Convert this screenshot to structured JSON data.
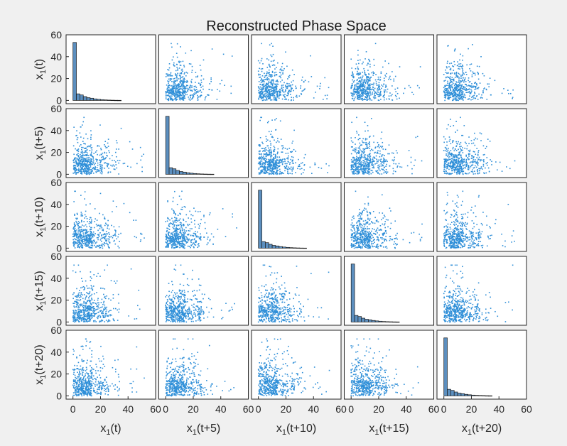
{
  "chart_data": {
    "type": "scatter-matrix",
    "title": "Reconstructed Phase Space",
    "variables": [
      {
        "base": "x",
        "sub": "1",
        "suffix": "(t)"
      },
      {
        "base": "x",
        "sub": "1",
        "suffix": "(t+5)"
      },
      {
        "base": "x",
        "sub": "1",
        "suffix": "(t+10)"
      },
      {
        "base": "x",
        "sub": "1",
        "suffix": "(t+15)"
      },
      {
        "base": "x",
        "sub": "1",
        "suffix": "(t+20)"
      }
    ],
    "xlim": [
      -5,
      60
    ],
    "ylim": [
      -3,
      60
    ],
    "ticks": [
      0,
      20,
      40,
      60
    ],
    "grid": false,
    "histogram": {
      "bin_width": 2.5,
      "counts": [
        53,
        6,
        5,
        3.5,
        2.5,
        2,
        1.4,
        1,
        0.7,
        0.45,
        0.3,
        0.2,
        0.12,
        0.08
      ]
    },
    "scatter": {
      "point_count": 520,
      "x_range": [
        0,
        52
      ],
      "y_range": [
        0,
        52
      ],
      "typical_cluster": [
        0,
        25
      ]
    },
    "colors": {
      "points": "#2f8fd8",
      "bars": "#5c8fbf",
      "bar_edge": "#1a1a1a",
      "axes": "#262626",
      "background": "#f0f0f0",
      "panel": "#ffffff"
    }
  }
}
